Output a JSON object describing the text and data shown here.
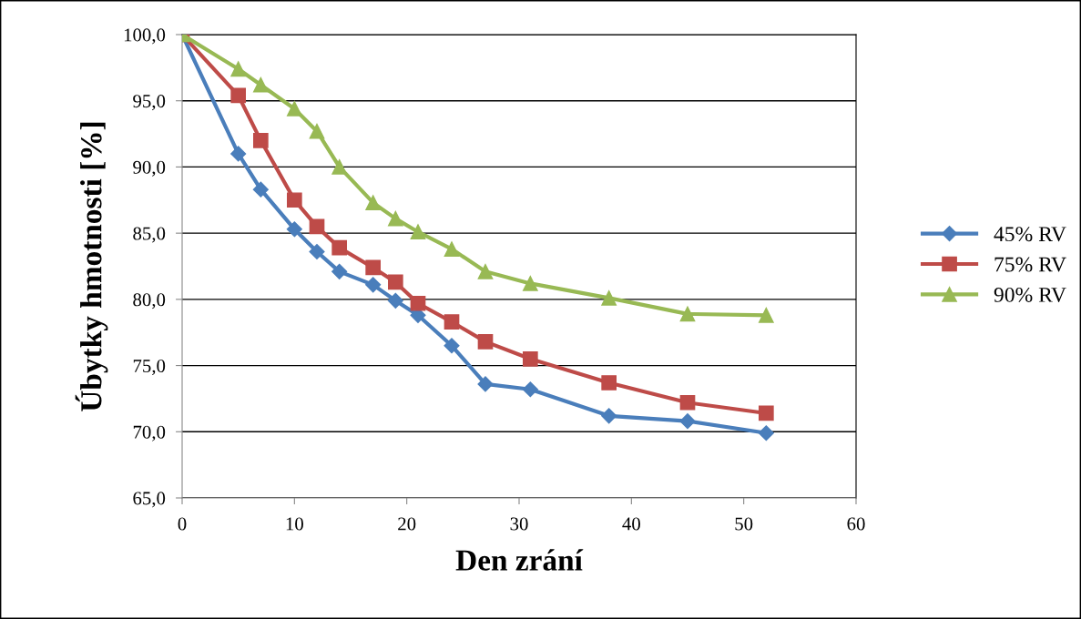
{
  "chart_data": {
    "type": "line",
    "xlabel": "Den zrání",
    "ylabel": "Úbytky hmotnosti [%]",
    "x": [
      0,
      5,
      7,
      10,
      12,
      14,
      17,
      19,
      21,
      24,
      27,
      31,
      38,
      45,
      52
    ],
    "series": [
      {
        "name": "45% RV",
        "color": "#4a7ebb",
        "marker": "diamond",
        "values": [
          100,
          91.0,
          88.3,
          85.3,
          83.6,
          82.1,
          81.1,
          79.9,
          78.8,
          76.5,
          73.6,
          73.2,
          71.2,
          70.8,
          69.9
        ]
      },
      {
        "name": "75% RV",
        "color": "#be4b48",
        "marker": "square",
        "values": [
          100,
          95.4,
          92.0,
          87.5,
          85.5,
          83.9,
          82.4,
          81.3,
          79.7,
          78.3,
          76.8,
          75.5,
          73.7,
          72.2,
          71.4
        ]
      },
      {
        "name": "90% RV",
        "color": "#98b954",
        "marker": "triangle",
        "values": [
          100,
          97.4,
          96.2,
          94.4,
          92.7,
          90.0,
          87.3,
          86.1,
          85.1,
          83.8,
          82.1,
          81.2,
          80.1,
          78.9,
          78.8
        ]
      }
    ],
    "xlim": [
      0,
      60
    ],
    "xticks": [
      0,
      10,
      20,
      30,
      40,
      50,
      60
    ],
    "ylim": [
      65,
      100
    ],
    "yticks": [
      {
        "value": 65,
        "label": "65,0"
      },
      {
        "value": 70,
        "label": "70,0"
      },
      {
        "value": 75,
        "label": "75,0"
      },
      {
        "value": 80,
        "label": "80,0"
      },
      {
        "value": 85,
        "label": "85,0"
      },
      {
        "value": 90,
        "label": "90,0"
      },
      {
        "value": 95,
        "label": "95,0"
      },
      {
        "value": 100,
        "label": "100,0"
      }
    ],
    "grid": "y",
    "legend": "right",
    "line_style": "solid"
  }
}
